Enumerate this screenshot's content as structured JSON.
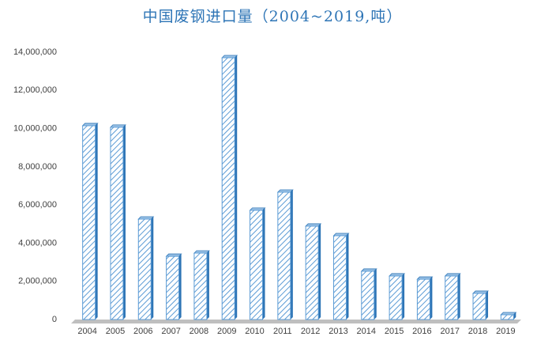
{
  "chart_data": {
    "type": "bar",
    "title": "中国废钢进口量（2004~2019,吨）",
    "categories": [
      "2004",
      "2005",
      "2006",
      "2007",
      "2008",
      "2009",
      "2010",
      "2011",
      "2012",
      "2013",
      "2014",
      "2015",
      "2016",
      "2017",
      "2018",
      "2019"
    ],
    "values": [
      10150000,
      10070000,
      5260000,
      3310000,
      3480000,
      13710000,
      5720000,
      6670000,
      4890000,
      4390000,
      2530000,
      2280000,
      2110000,
      2280000,
      1370000,
      250000
    ],
    "color": "#9dc3e6",
    "ylim": [
      0,
      14000000
    ],
    "yticks": [
      0,
      {
        "value": 2000000,
        "label": "2,000,000"
      },
      {
        "value": 4000000,
        "label": "4,000,000"
      },
      {
        "value": 6000000,
        "label": "6,000,000"
      },
      {
        "value": 8000000,
        "label": "8,000,000"
      },
      {
        "value": 10000000,
        "label": "10,000,000"
      },
      {
        "value": 12000000,
        "label": "12,000,000"
      },
      {
        "value": 14000000,
        "label": "14,000,000"
      }
    ],
    "grid": false
  }
}
